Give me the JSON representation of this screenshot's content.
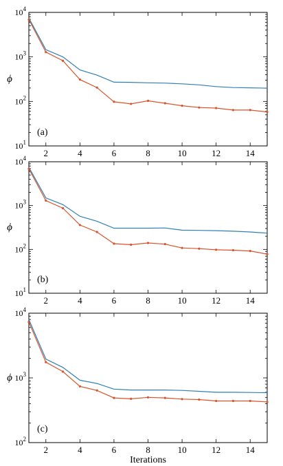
{
  "chart_data": [
    {
      "type": "line",
      "panel_label": "(a)",
      "ylabel": "ϕ",
      "xlabel": "",
      "yscale": "log",
      "xlim": [
        1,
        15
      ],
      "ylim": [
        10,
        10000
      ],
      "xticks": [
        "2",
        "4",
        "6",
        "8",
        "10",
        "12",
        "14"
      ],
      "yticks": [
        "10^1",
        "10^2",
        "10^3",
        "10^4"
      ],
      "x": [
        1,
        2,
        3,
        4,
        5,
        6,
        7,
        8,
        9,
        10,
        11,
        12,
        13,
        14,
        15
      ],
      "series": [
        {
          "color": "#2f7fb5",
          "marker": false,
          "values": [
            7500,
            1450,
            1000,
            510,
            390,
            270,
            268,
            262,
            258,
            248,
            235,
            215,
            205,
            202,
            198
          ]
        },
        {
          "color": "#d9542b",
          "marker": true,
          "values": [
            6900,
            1280,
            820,
            310,
            205,
            98,
            88,
            103,
            91,
            80,
            73,
            71,
            64,
            64,
            58
          ]
        }
      ]
    },
    {
      "type": "line",
      "panel_label": "(b)",
      "ylabel": "ϕ",
      "xlabel": "",
      "yscale": "log",
      "xlim": [
        1,
        15
      ],
      "ylim": [
        10,
        10000
      ],
      "xticks": [
        "2",
        "4",
        "6",
        "8",
        "10",
        "12",
        "14"
      ],
      "yticks": [
        "10^1",
        "10^2",
        "10^3",
        "10^4"
      ],
      "x": [
        1,
        2,
        3,
        4,
        5,
        6,
        7,
        8,
        9,
        10,
        11,
        12,
        13,
        14,
        15
      ],
      "series": [
        {
          "color": "#2f7fb5",
          "marker": false,
          "values": [
            7500,
            1500,
            1050,
            570,
            440,
            305,
            305,
            305,
            308,
            275,
            272,
            268,
            260,
            250,
            235
          ]
        },
        {
          "color": "#d9542b",
          "marker": true,
          "values": [
            6900,
            1300,
            870,
            360,
            250,
            135,
            128,
            140,
            132,
            108,
            104,
            98,
            96,
            92,
            78
          ]
        }
      ]
    },
    {
      "type": "line",
      "panel_label": "(c)",
      "ylabel": "ϕ",
      "xlabel": "Iterations",
      "yscale": "log",
      "xlim": [
        1,
        15
      ],
      "ylim": [
        100,
        10000
      ],
      "xticks": [
        "2",
        "4",
        "6",
        "8",
        "10",
        "12",
        "14"
      ],
      "yticks": [
        "10^2",
        "10^3",
        "10^4"
      ],
      "x": [
        1,
        2,
        3,
        4,
        5,
        6,
        7,
        8,
        9,
        10,
        11,
        12,
        13,
        14,
        15
      ],
      "series": [
        {
          "color": "#2f7fb5",
          "marker": false,
          "values": [
            8000,
            1950,
            1450,
            920,
            820,
            670,
            650,
            650,
            650,
            640,
            620,
            600,
            600,
            595,
            590
          ]
        },
        {
          "color": "#d9542b",
          "marker": true,
          "values": [
            7300,
            1750,
            1250,
            740,
            640,
            490,
            475,
            500,
            490,
            470,
            462,
            440,
            440,
            440,
            425
          ]
        }
      ]
    }
  ]
}
